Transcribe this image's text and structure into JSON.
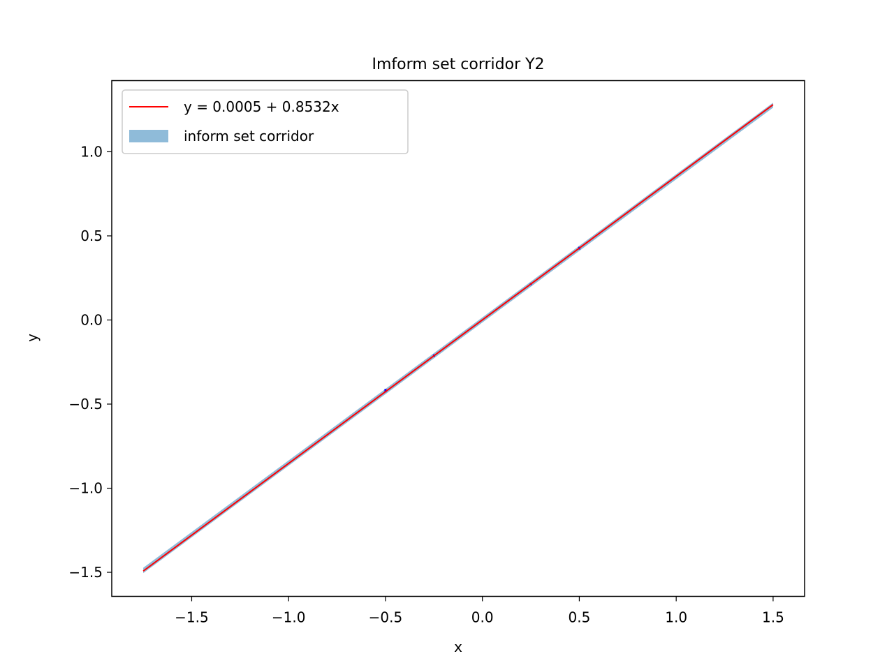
{
  "chart_data": {
    "type": "line",
    "title": "Imform set corridor Y2",
    "xlabel": "x",
    "ylabel": "y",
    "xlim": [
      -1.9125,
      1.6625
    ],
    "ylim": [
      -1.643,
      1.423
    ],
    "x_ticks": [
      -1.5,
      -1.0,
      -0.5,
      0.0,
      0.5,
      1.0,
      1.5
    ],
    "x_tick_labels": [
      "−1.5",
      "−1.0",
      "−0.5",
      "0.0",
      "0.5",
      "1.0",
      "1.5"
    ],
    "y_ticks": [
      -1.5,
      -1.0,
      -0.5,
      0.0,
      0.5,
      1.0
    ],
    "y_tick_labels": [
      "−1.5",
      "−1.0",
      "−0.5",
      "0.0",
      "0.5",
      "1.0"
    ],
    "grid": false,
    "legend_position": "top-left",
    "series": [
      {
        "name": "y = 0.0005 + 0.8532x",
        "kind": "line",
        "color": "#ff0000",
        "x": [
          -1.75,
          1.5
        ],
        "y": [
          -1.4926,
          1.2803
        ]
      },
      {
        "name": "inform set corridor",
        "kind": "band",
        "color": "#1f77b4",
        "alpha": 0.5,
        "x": [
          -1.75,
          1.5
        ],
        "y_lower": [
          -1.505,
          1.262
        ],
        "y_upper": [
          -1.473,
          1.292
        ]
      },
      {
        "kind": "intervals",
        "color": "#0000ff",
        "x": [
          -0.5,
          -0.25,
          0.25,
          0.5
        ],
        "y_lower": [
          -0.43,
          -0.219,
          0.207,
          0.419
        ],
        "y_upper": [
          -0.41,
          -0.205,
          0.219,
          0.435
        ]
      }
    ]
  }
}
